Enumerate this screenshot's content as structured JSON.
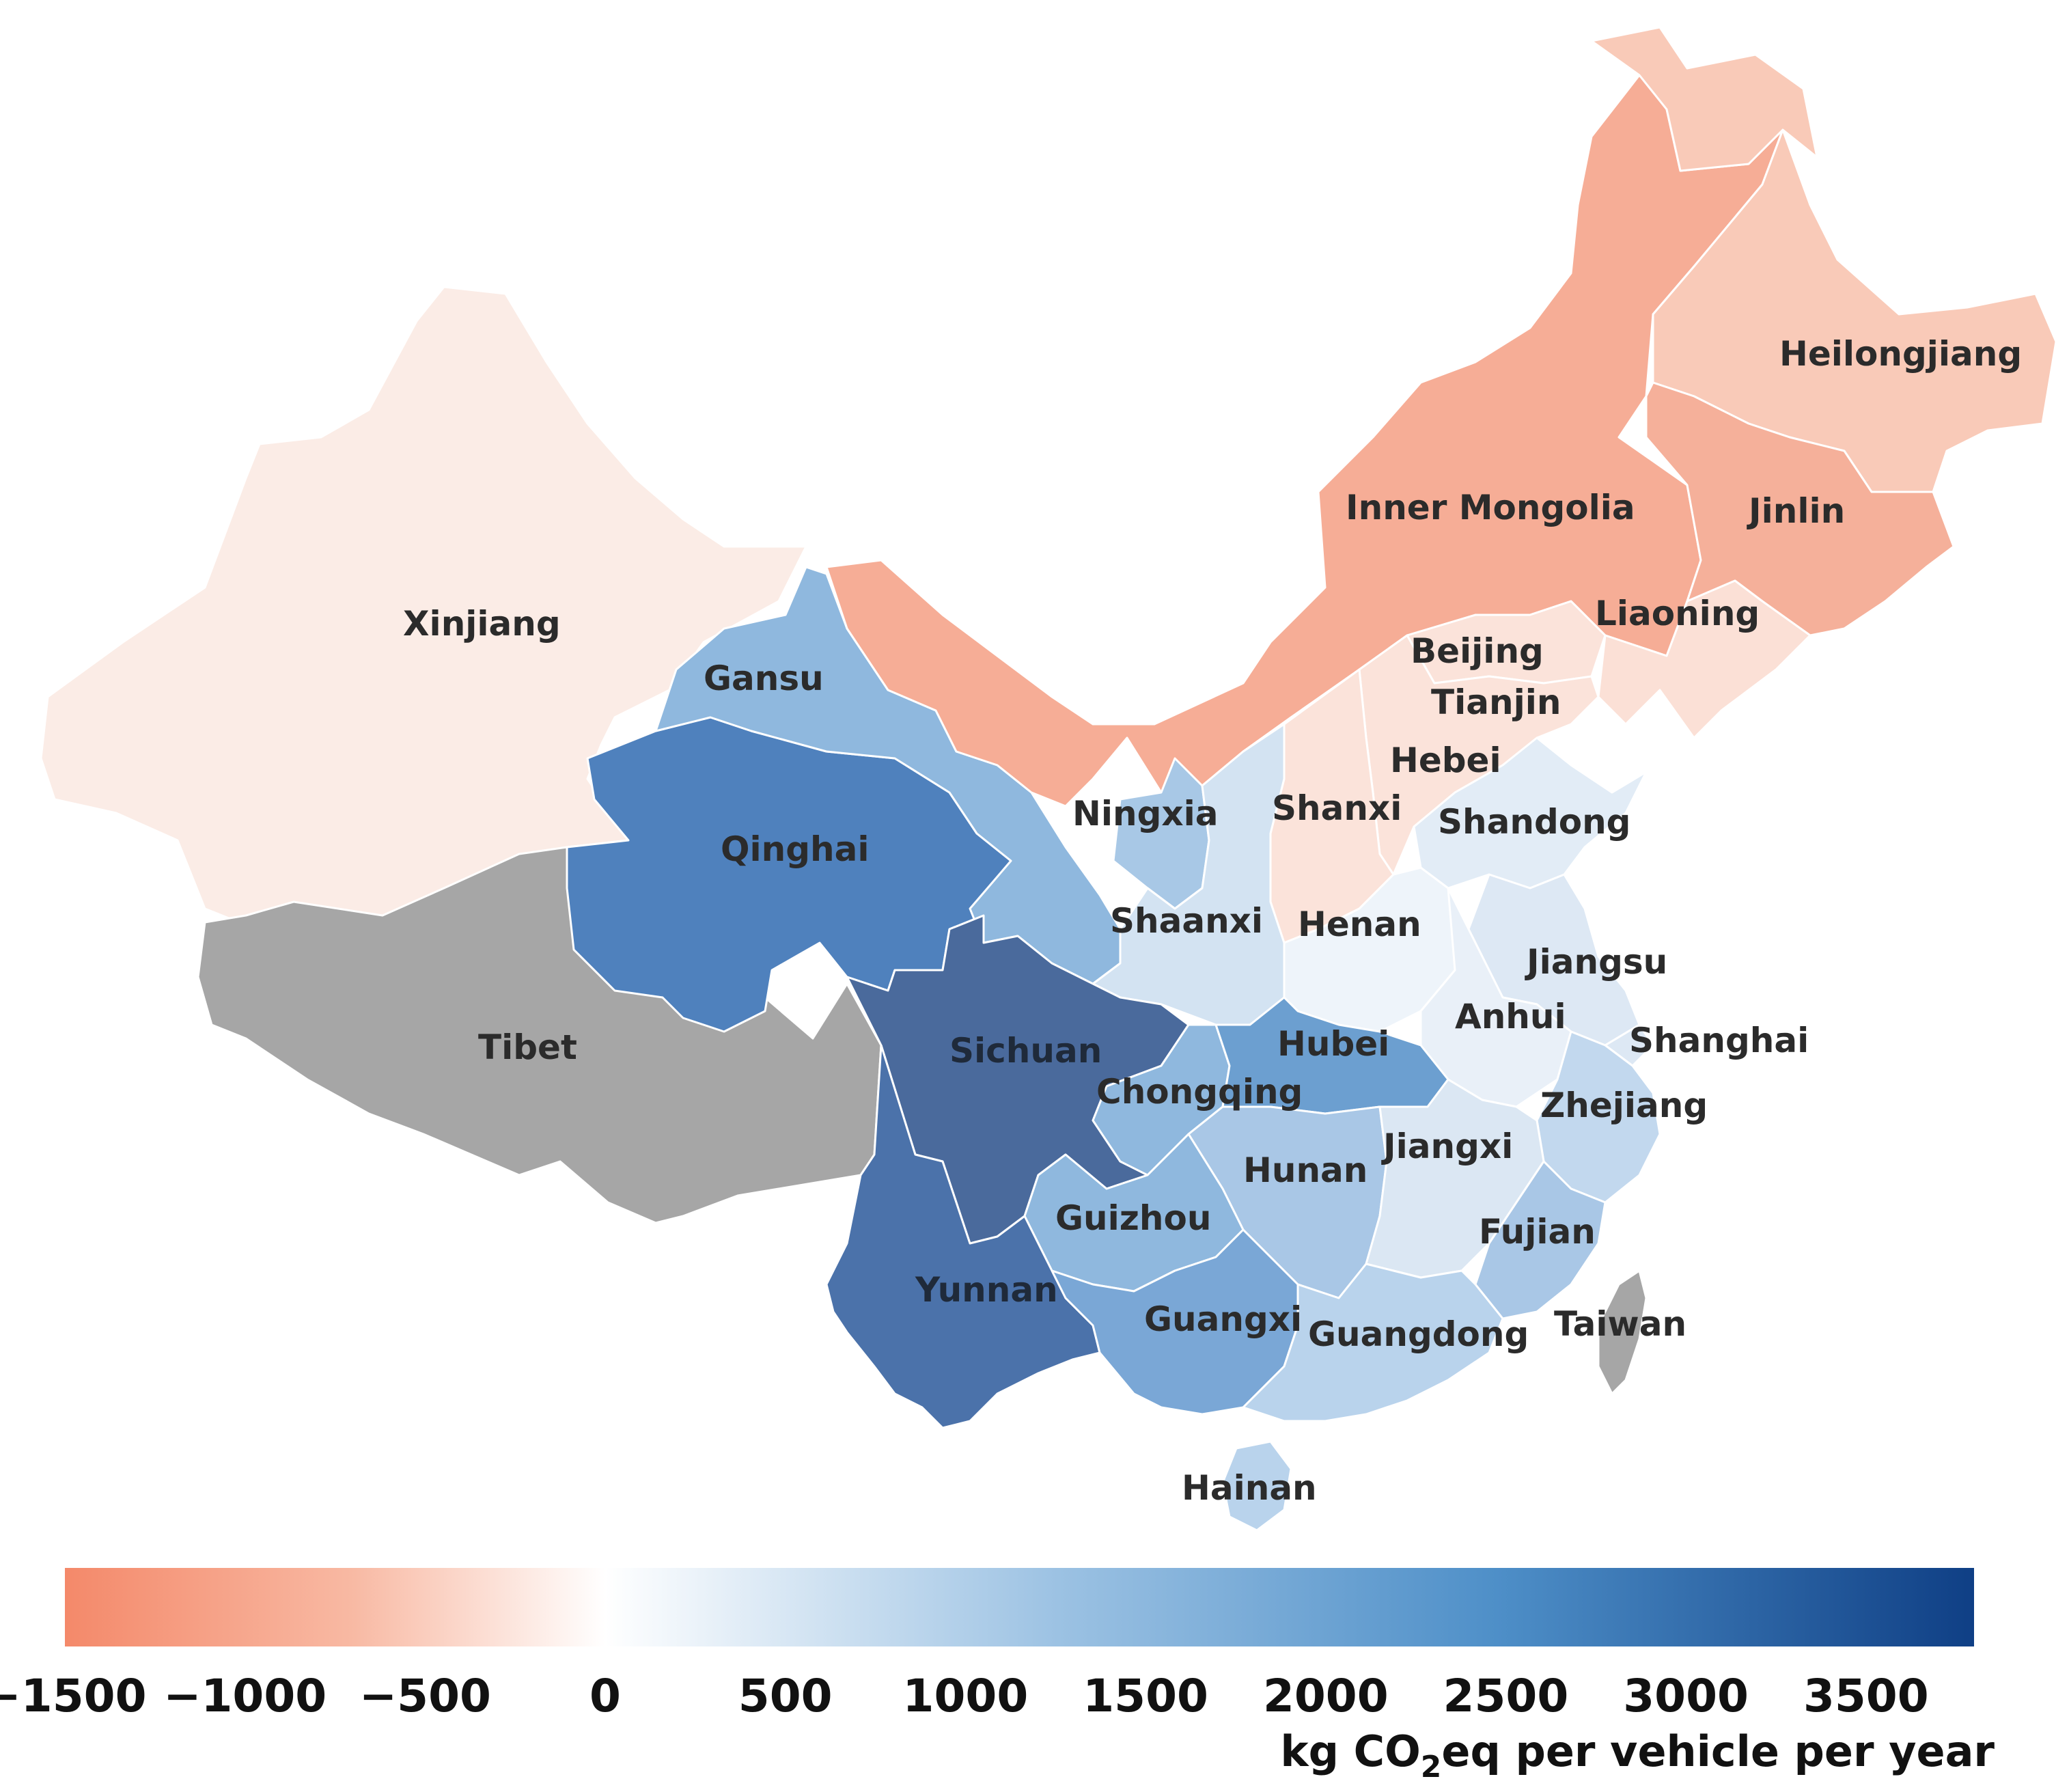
{
  "regions": [
    {
      "id": "xinjiang",
      "label": "Xinjiang",
      "color": "#fbece6"
    },
    {
      "id": "tibet",
      "label": "Tibet",
      "color": "#a6a6a6"
    },
    {
      "id": "qinghai",
      "label": "Qinghai",
      "color": "#4f81bd"
    },
    {
      "id": "gansu",
      "label": "Gansu",
      "color": "#8fb8de"
    },
    {
      "id": "inner-mongolia",
      "label": "Inner Mongolia",
      "color": "#f6ad96"
    },
    {
      "id": "heilongjiang",
      "label": "Heilongjiang",
      "color": "#f9cab8"
    },
    {
      "id": "jinlin",
      "label": "Jinlin",
      "color": "#f5b09a"
    },
    {
      "id": "liaoning",
      "label": "Liaoning",
      "color": "#fbe0d6"
    },
    {
      "id": "beijing",
      "label": "Beijing",
      "color": "#fbe3da"
    },
    {
      "id": "tianjin",
      "label": "Tianjin",
      "color": "#fbe3da"
    },
    {
      "id": "hebei",
      "label": "Hebei",
      "color": "#fbe3da"
    },
    {
      "id": "shanxi",
      "label": "Shanxi",
      "color": "#fbe3da"
    },
    {
      "id": "shandong",
      "label": "Shandong",
      "color": "#e2ecf6"
    },
    {
      "id": "ningxia",
      "label": "Ningxia",
      "color": "#a8c8e6"
    },
    {
      "id": "shaanxi",
      "label": "Shaanxi",
      "color": "#d3e3f2"
    },
    {
      "id": "henan",
      "label": "Henan",
      "color": "#eef4fa"
    },
    {
      "id": "jiangsu",
      "label": "Jiangsu",
      "color": "#dde8f4"
    },
    {
      "id": "anhui",
      "label": "Anhui",
      "color": "#e9f0f8"
    },
    {
      "id": "shanghai",
      "label": "Shanghai",
      "color": "#dde8f4"
    },
    {
      "id": "sichuan",
      "label": "Sichuan",
      "color": "#4a6a9c"
    },
    {
      "id": "chongqing",
      "label": "Chongqing",
      "color": "#8fb8de"
    },
    {
      "id": "hubei",
      "label": "Hubei",
      "color": "#6c9fd0"
    },
    {
      "id": "zhejiang",
      "label": "Zhejiang",
      "color": "#c2d8ee"
    },
    {
      "id": "hunan",
      "label": "Hunan",
      "color": "#a9c7e6"
    },
    {
      "id": "jiangxi",
      "label": "Jiangxi",
      "color": "#dbe7f3"
    },
    {
      "id": "guizhou",
      "label": "Guizhou",
      "color": "#8fb8de"
    },
    {
      "id": "fujian",
      "label": "Fujian",
      "color": "#a9c7e6"
    },
    {
      "id": "yunnan",
      "label": "Yunnan",
      "color": "#4b72aa"
    },
    {
      "id": "guangxi",
      "label": "Guangxi",
      "color": "#7aa7d6"
    },
    {
      "id": "guangdong",
      "label": "Guangdong",
      "color": "#b9d3ec"
    },
    {
      "id": "taiwan",
      "label": "Taiwan",
      "color": "#a6a6a6"
    },
    {
      "id": "hainan",
      "label": "Hainan",
      "color": "#b9d3ec"
    }
  ],
  "legend": {
    "min": -1500,
    "max": 3800,
    "ticks": [
      "−1500",
      "−1000",
      "−500",
      "0",
      "500",
      "1000",
      "1500",
      "2000",
      "2500",
      "3000",
      "3500"
    ],
    "tick_values": [
      -1500,
      -1000,
      -500,
      0,
      500,
      1000,
      1500,
      2000,
      2500,
      3000,
      3500
    ],
    "colors": {
      "low": "#f4896a",
      "mid": "#ffffff",
      "high": "#0f3f85"
    },
    "unit_prefix": "kg CO",
    "unit_subscript": "2",
    "unit_suffix": "eq per vehicle per year"
  }
}
